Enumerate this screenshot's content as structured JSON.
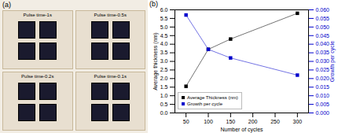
{
  "chart_data": {
    "type": "line",
    "xlabel": "Number of cycles",
    "ylabel": "Average thickness (nm)",
    "y2label": "Growth per cycle",
    "annotations": [
      "(a)",
      "Pulse time-1s",
      "Pulse time-0.5s",
      "Pulse time-0.2s",
      "Pulse time-0.1s",
      "(b)"
    ],
    "x": [
      50,
      100,
      150,
      300
    ],
    "series": [
      {
        "name": "Average Thickness (nm)",
        "color": "#000000",
        "marker": "square",
        "values": [
          1.55,
          3.7,
          4.3,
          5.8
        ]
      },
      {
        "name": "Growth per cycle",
        "color": "#0000cc",
        "marker": "square",
        "axis": "y2",
        "values": [
          0.057,
          0.037,
          0.032,
          0.022
        ]
      }
    ],
    "xlim": [
      25,
      325
    ],
    "xticks": [
      50,
      100,
      150,
      200,
      250,
      300
    ],
    "ylim": [
      0,
      6
    ],
    "yticks": [
      {
        "value": 0,
        "label": "0.0"
      },
      0.5,
      {
        "value": 1,
        "label": "1.0"
      },
      1.5,
      {
        "value": 2,
        "label": "2.0"
      },
      2.5,
      {
        "value": 3,
        "label": "3.0"
      },
      3.5,
      {
        "value": 4,
        "label": "4.0"
      },
      4.5,
      {
        "value": 5,
        "label": "5.0"
      },
      5.5,
      {
        "value": 6,
        "label": "6.0"
      }
    ],
    "y2lim": [
      0,
      0.06
    ],
    "y2ticks": [
      {
        "value": 0,
        "label": "0.000"
      },
      0.005,
      {
        "value": 0.01,
        "label": "0.010"
      },
      0.015,
      {
        "value": 0.02,
        "label": "0.020"
      },
      0.025,
      {
        "value": 0.03,
        "label": "0.030"
      },
      0.035,
      {
        "value": 0.04,
        "label": "0.040"
      },
      0.045,
      {
        "value": 0.05,
        "label": "0.050"
      },
      0.055,
      {
        "value": 0.06,
        "label": "0.060"
      }
    ],
    "grid": false,
    "legend": "lower left"
  }
}
